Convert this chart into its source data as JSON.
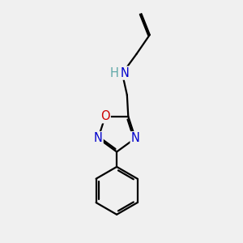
{
  "bg_color": "#f0f0f0",
  "bond_color": "#000000",
  "N_color": "#0000cc",
  "O_color": "#cc0000",
  "H_color": "#5fa8a8",
  "bond_width": 1.6,
  "font_size_atom": 10.5,
  "fig_size": [
    3.0,
    3.0
  ],
  "dpi": 100,
  "xlim": [
    0,
    10
  ],
  "ylim": [
    0,
    10
  ]
}
